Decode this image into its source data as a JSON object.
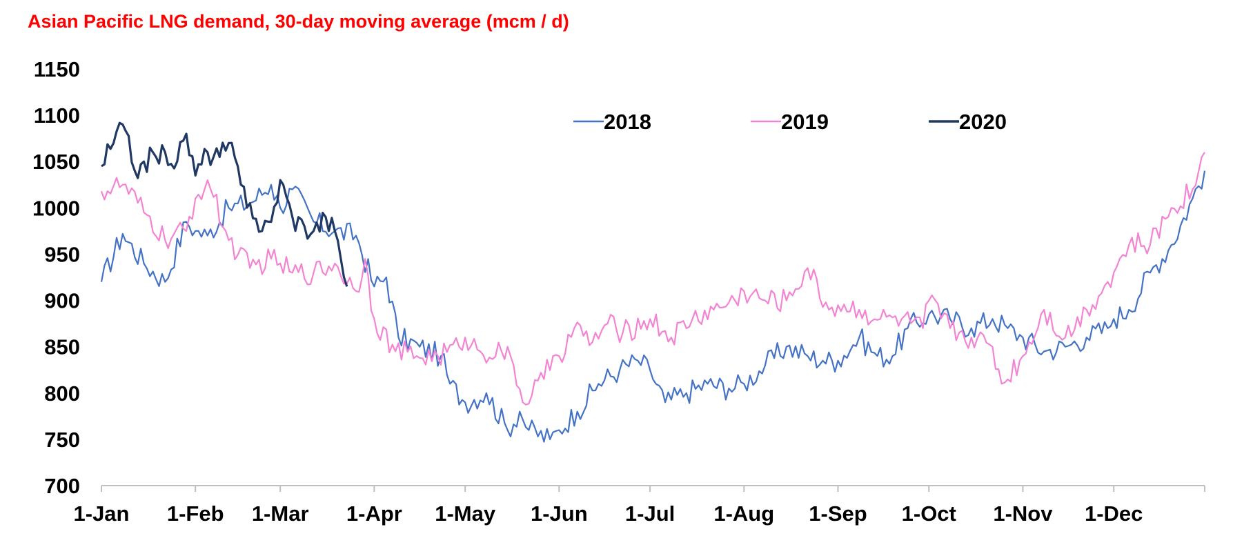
{
  "chart_data": {
    "type": "line",
    "title": "Asian Pacific LNG demand, 30-day moving average (mcm / d)",
    "xlabel": "",
    "ylabel": "",
    "ylim": [
      700,
      1150
    ],
    "ytick_values": [
      700,
      750,
      800,
      850,
      900,
      950,
      1000,
      1050,
      1100,
      1150
    ],
    "xtick_labels": [
      "1-Jan",
      "1-Feb",
      "1-Mar",
      "1-Apr",
      "1-May",
      "1-Jun",
      "1-Jul",
      "1-Aug",
      "1-Sep",
      "1-Oct",
      "1-Nov",
      "1-Dec"
    ],
    "xtick_days": [
      1,
      32,
      60,
      91,
      121,
      152,
      182,
      213,
      244,
      274,
      305,
      335
    ],
    "x_unit": "day of year",
    "xlim": [
      1,
      365
    ],
    "legend_position": "top-center",
    "grid": false,
    "series": [
      {
        "name": "2018",
        "color": "#4472c4",
        "x": [
          1,
          8,
          15,
          22,
          29,
          32,
          36,
          43,
          50,
          57,
          60,
          64,
          71,
          78,
          85,
          91,
          95,
          99,
          106,
          113,
          116,
          121,
          128,
          135,
          139,
          142,
          149,
          152,
          158,
          165,
          172,
          178,
          182,
          187,
          194,
          201,
          208,
          213,
          220,
          227,
          234,
          239,
          244,
          251,
          257,
          262,
          267,
          274,
          281,
          288,
          295,
          300,
          305,
          312,
          319,
          326,
          333,
          335,
          340,
          347,
          354,
          361,
          365
        ],
        "values": [
          920,
          972,
          940,
          920,
          985,
          975,
          970,
          1000,
          1005,
          1025,
          1000,
          1020,
          985,
          975,
          970,
          915,
          925,
          860,
          850,
          840,
          810,
          790,
          800,
          760,
          780,
          760,
          750,
          760,
          780,
          810,
          825,
          835,
          825,
          790,
          800,
          810,
          805,
          810,
          830,
          850,
          840,
          835,
          835,
          860,
          840,
          840,
          870,
          885,
          880,
          870,
          880,
          870,
          860,
          845,
          850,
          860,
          870,
          880,
          890,
          930,
          960,
          1010,
          1040
        ]
      },
      {
        "name": "2019",
        "color": "#f284d3",
        "x": [
          1,
          8,
          15,
          22,
          29,
          32,
          36,
          43,
          50,
          57,
          60,
          64,
          71,
          78,
          85,
          88,
          91,
          98,
          105,
          112,
          119,
          121,
          126,
          133,
          137,
          140,
          147,
          150,
          152,
          157,
          163,
          168,
          173,
          182,
          189,
          196,
          203,
          210,
          213,
          220,
          227,
          234,
          241,
          244,
          251,
          258,
          265,
          272,
          274,
          281,
          288,
          295,
          298,
          305,
          312,
          319,
          326,
          333,
          335,
          340,
          347,
          354,
          361,
          365
        ],
        "values": [
          1018,
          1025,
          995,
          965,
          975,
          1010,
          1030,
          965,
          935,
          945,
          940,
          930,
          930,
          940,
          910,
          945,
          880,
          845,
          840,
          840,
          850,
          860,
          845,
          845,
          830,
          790,
          815,
          840,
          840,
          870,
          855,
          875,
          865,
          880,
          860,
          880,
          890,
          900,
          910,
          900,
          900,
          935,
          890,
          895,
          890,
          880,
          880,
          870,
          900,
          870,
          860,
          850,
          810,
          840,
          890,
          860,
          890,
          920,
          930,
          960,
          960,
          1000,
          1020,
          1060
        ]
      },
      {
        "name": "2020",
        "color": "#203864",
        "x": [
          1,
          5,
          8,
          12,
          15,
          19,
          22,
          26,
          29,
          32,
          36,
          40,
          43,
          47,
          50,
          54,
          57,
          60,
          64,
          68,
          71,
          75,
          78,
          80,
          82
        ],
        "values": [
          1045,
          1070,
          1090,
          1040,
          1050,
          1055,
          1060,
          1050,
          1080,
          1035,
          1060,
          1055,
          1070,
          1025,
          1005,
          975,
          985,
          1030,
          990,
          980,
          975,
          990,
          975,
          945,
          915
        ]
      }
    ]
  }
}
